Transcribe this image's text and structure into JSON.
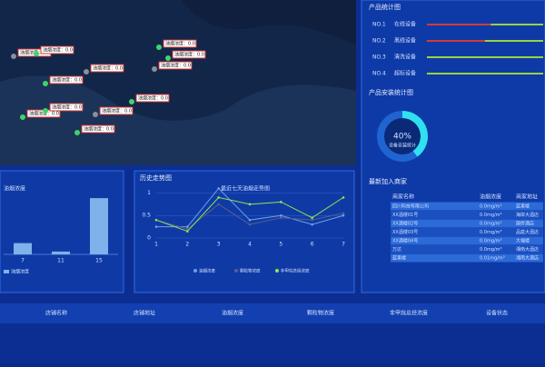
{
  "map": {
    "markers": [
      "油烟浓度：0.0",
      "油烟浓度：0.0",
      "油烟浓度：0.0",
      "油烟浓度：0.0",
      "油烟浓度：0.0",
      "油烟浓度：0.0",
      "油烟浓度：0.0",
      "油烟浓度：0.0",
      "油烟浓度：0.0",
      "油烟浓度：0.0",
      "油烟浓度：0.0",
      "油烟浓度：0.0"
    ]
  },
  "product_stats": {
    "title": "产品统计图",
    "items": [
      {
        "no": "NO.1",
        "name": "在线设备",
        "value": 55
      },
      {
        "no": "NO.2",
        "name": "离线设备",
        "value": 50
      },
      {
        "no": "NO.3",
        "name": "清洗设备",
        "value": 0
      },
      {
        "no": "NO.4",
        "name": "超标设备",
        "value": 0
      }
    ]
  },
  "install_stats": {
    "title": "产品安装统计图",
    "value": 40,
    "label": "40%",
    "caption": "设备安装统计"
  },
  "merchants": {
    "title": "最新加入商家",
    "header": [
      "商家名称",
      "油烟浓度",
      "商家地址"
    ],
    "rows": [
      [
        "四川科技有限公司",
        "0.0mg/m³",
        "蓝果楼"
      ],
      [
        "XX酒楼01号",
        "0.0mg/m³",
        "海岸大酒店"
      ],
      [
        "XX酒楼02号",
        "0.0mg/m³",
        "国侨酒店"
      ],
      [
        "XX酒楼03号",
        "0.0mg/m³",
        "品庭大酒店"
      ],
      [
        "XX酒楼04号",
        "0.0mg/m³",
        "大福楼"
      ],
      [
        "万达",
        "0.0mg/m³",
        "湘南大酒店"
      ],
      [
        "蓝果楼",
        "0.01mg/m³",
        "湘南大酒店"
      ]
    ]
  },
  "chart_data": [
    {
      "type": "bar",
      "title": "油烟浓度",
      "categories": [
        "7",
        "11",
        "15"
      ],
      "values": [
        0.2,
        0.05,
        1.0
      ],
      "legend": "油烟浓度",
      "color": "#7fb2ea",
      "ylim": [
        0,
        1.05
      ]
    },
    {
      "type": "line",
      "panel_title": "历史走势图",
      "title": "最近七天油烟走势图",
      "x": [
        1,
        2,
        3,
        4,
        5,
        6,
        7
      ],
      "xticks": [
        1,
        2,
        3,
        4,
        5,
        6,
        7
      ],
      "xlim": [
        1,
        7
      ],
      "ylim": [
        0,
        1.15
      ],
      "yticks": [
        0,
        0.5,
        1
      ],
      "series": [
        {
          "name": "油烟浓度",
          "color": "#6f9ee8",
          "values": [
            0.25,
            0.25,
            1.1,
            0.4,
            0.5,
            0.3,
            0.5
          ]
        },
        {
          "name": "颗粒物浓度",
          "color": "#5a5f8a",
          "values": [
            0.4,
            0.2,
            0.75,
            0.3,
            0.45,
            0.4,
            0.55
          ]
        },
        {
          "name": "非甲烷总烃浓度",
          "color": "#8ee84a",
          "values": [
            0.4,
            0.15,
            0.9,
            0.75,
            0.8,
            0.45,
            0.9
          ]
        }
      ]
    }
  ],
  "footer": {
    "columns": [
      "店铺名称",
      "店铺地址",
      "油烟浓度",
      "颗粒物浓度",
      "非甲烷总烃浓度",
      "设备状态"
    ]
  }
}
